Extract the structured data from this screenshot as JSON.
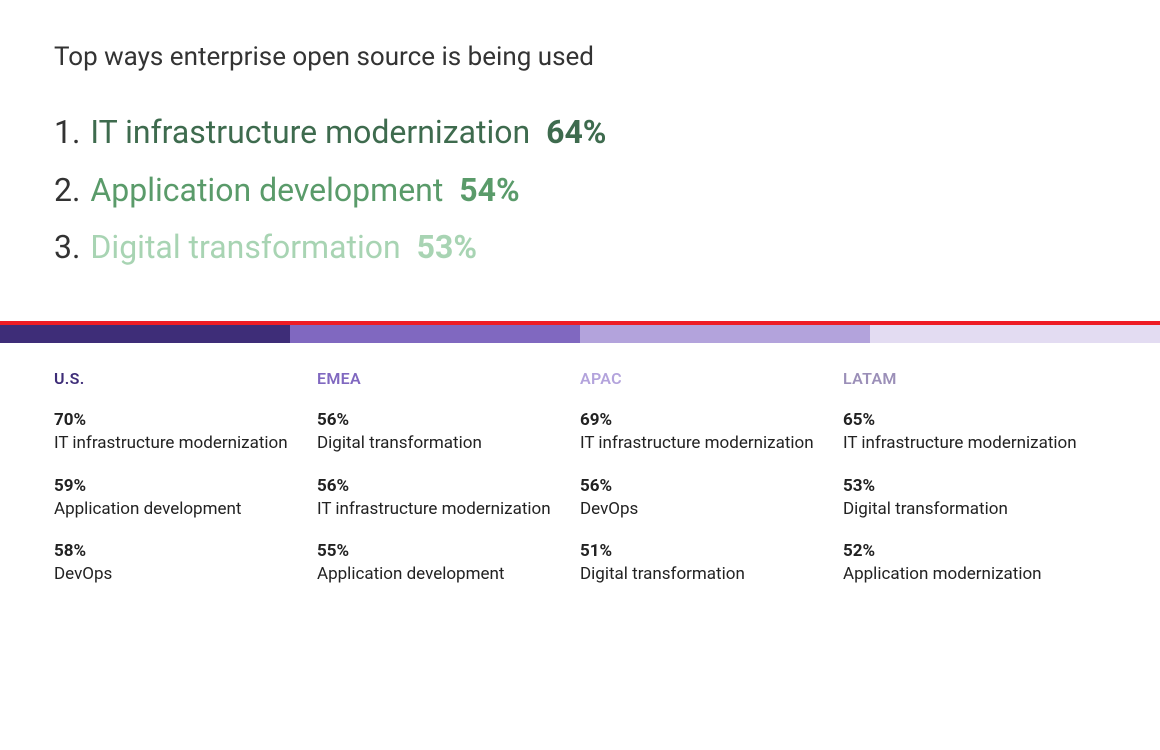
{
  "title": "Top ways enterprise open source is being used",
  "title_color": "#333333",
  "title_fontsize": 26,
  "top_list": [
    {
      "rank": "1.",
      "label": "IT infrastructure modernization",
      "pct": "64%",
      "color": "#3e6b4e"
    },
    {
      "rank": "2.",
      "label": "Application development",
      "pct": "54%",
      "color": "#5a9b6a"
    },
    {
      "rank": "3.",
      "label": "Digital transformation",
      "pct": "53%",
      "color": "#a8d4b3"
    }
  ],
  "top_list_fontsize": 32,
  "divider_color": "#ee1c25",
  "region_bar_colors": [
    "#3e2d78",
    "#8068c0",
    "#b3a3dc",
    "#e3dcf2"
  ],
  "region_name_colors": [
    "#3e2d78",
    "#8068c0",
    "#b3a3dc",
    "#9b8fb8"
  ],
  "regions": [
    {
      "name": "U.S.",
      "entries": [
        {
          "pct": "70%",
          "label": "IT infrastructure modernization"
        },
        {
          "pct": "59%",
          "label": "Application development"
        },
        {
          "pct": "58%",
          "label": "DevOps"
        }
      ]
    },
    {
      "name": "EMEA",
      "entries": [
        {
          "pct": "56%",
          "label": "Digital transformation"
        },
        {
          "pct": "56%",
          "label": "IT infrastructure modernization"
        },
        {
          "pct": "55%",
          "label": "Application development"
        }
      ]
    },
    {
      "name": "APAC",
      "entries": [
        {
          "pct": "69%",
          "label": "IT infrastructure modernization"
        },
        {
          "pct": "56%",
          "label": "DevOps"
        },
        {
          "pct": "51%",
          "label": "Digital transformation"
        }
      ]
    },
    {
      "name": "LATAM",
      "entries": [
        {
          "pct": "65%",
          "label": "IT infrastructure modernization"
        },
        {
          "pct": "53%",
          "label": "Digital transformation"
        },
        {
          "pct": "52%",
          "label": "Application modernization"
        }
      ]
    }
  ],
  "entry_pct_fontsize": 17,
  "entry_label_fontsize": 17,
  "region_name_fontsize": 16,
  "background_color": "#ffffff"
}
